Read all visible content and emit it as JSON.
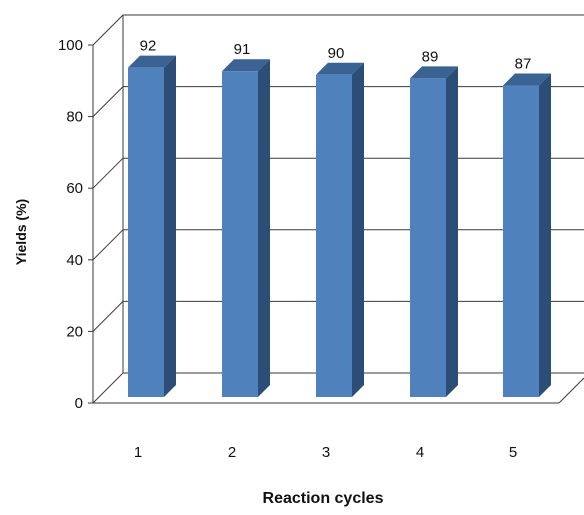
{
  "chart_data": {
    "type": "bar",
    "categories": [
      "1",
      "2",
      "3",
      "4",
      "5"
    ],
    "values": [
      92,
      91,
      90,
      89,
      87
    ],
    "data_labels": [
      "92",
      "91",
      "90",
      "89",
      "87"
    ],
    "title": "",
    "xlabel": "Reaction cycles",
    "ylabel": "Yields (%)",
    "ylim": [
      0,
      100
    ],
    "yticks": [
      "0",
      "20",
      "40",
      "60",
      "80",
      "100"
    ],
    "grid": true,
    "legend": "none",
    "colors": {
      "bar_front": "#4f81bd",
      "bar_side": "#2c4d75",
      "bar_top": "#3a6293",
      "grid": "#3a3a3a"
    }
  }
}
